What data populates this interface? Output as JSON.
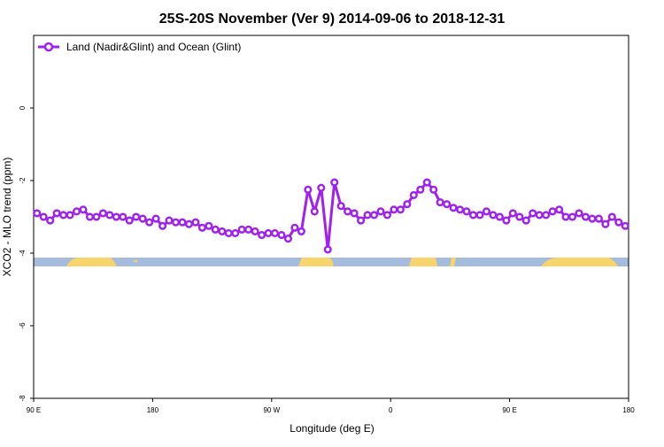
{
  "chart_data": {
    "type": "line",
    "title": "25S-20S November (Ver 9)   2014-09-06 to 2018-12-31",
    "x_label": "Longitude (deg E)",
    "y_label": "XCO2 - MLO trend (ppm)",
    "x": [
      92.5,
      97.5,
      102.5,
      107.5,
      112.5,
      117.5,
      122.5,
      127.5,
      132.5,
      137.5,
      142.5,
      147.5,
      152.5,
      157.5,
      162.5,
      167.5,
      172.5,
      177.5,
      182.5,
      187.5,
      192.5,
      197.5,
      202.5,
      207.5,
      212.5,
      217.5,
      222.5,
      227.5,
      232.5,
      237.5,
      242.5,
      247.5,
      252.5,
      257.5,
      262.5,
      267.5,
      272.5,
      277.5,
      282.5,
      287.5,
      292.5,
      297.5,
      302.5,
      307.5,
      312.5,
      317.5,
      322.5,
      327.5,
      332.5,
      337.5,
      342.5,
      347.5,
      352.5,
      357.5,
      362.5,
      367.5,
      372.5,
      377.5,
      382.5,
      387.5,
      392.5,
      397.5,
      402.5,
      407.5,
      412.5,
      417.5,
      422.5,
      427.5,
      432.5,
      437.5,
      442.5,
      447.5,
      452.5,
      457.5,
      462.5,
      467.5,
      472.5,
      477.5,
      482.5,
      487.5,
      492.5,
      497.5,
      502.5,
      507.5,
      512.5,
      517.5,
      522.5,
      527.5,
      532.5,
      537.5
    ],
    "series": [
      {
        "name": "Land (Nadir&Glint) and Ocean (Glint)",
        "color": "#a020f0",
        "values": [
          -2.9,
          -3.0,
          -3.1,
          -2.9,
          -2.95,
          -2.95,
          -2.85,
          -2.8,
          -3.0,
          -3.0,
          -2.9,
          -2.95,
          -3.0,
          -3.0,
          -3.1,
          -3.0,
          -3.05,
          -3.15,
          -3.05,
          -3.25,
          -3.1,
          -3.15,
          -3.15,
          -3.2,
          -3.15,
          -3.3,
          -3.25,
          -3.35,
          -3.4,
          -3.45,
          -3.45,
          -3.35,
          -3.35,
          -3.4,
          -3.5,
          -3.45,
          -3.45,
          -3.5,
          -3.6,
          -3.3,
          -3.4,
          -2.25,
          -2.85,
          -2.2,
          -3.9,
          -2.05,
          -2.7,
          -2.85,
          -2.9,
          -3.1,
          -2.95,
          -2.95,
          -2.85,
          -2.95,
          -2.8,
          -2.8,
          -2.65,
          -2.4,
          -2.25,
          -2.05,
          -2.25,
          -2.6,
          -2.65,
          -2.75,
          -2.8,
          -2.85,
          -2.95,
          -2.95,
          -2.85,
          -2.95,
          -3.0,
          -3.1,
          -2.9,
          -3.0,
          -3.1,
          -2.9,
          -2.95,
          -2.95,
          -2.85,
          -2.8,
          -3.0,
          -3.0,
          -2.9,
          -3.0,
          -3.05,
          -3.05,
          -3.2,
          -3.0,
          -3.15,
          -3.25
        ]
      }
    ],
    "xlim": [
      90,
      540
    ],
    "xticks": [
      {
        "value": 90,
        "label": "90 E"
      },
      180,
      {
        "value": 270,
        "label": "90 W"
      },
      {
        "value": 360,
        "label": "0"
      },
      {
        "value": 450,
        "label": "90 E"
      },
      {
        "value": 540,
        "label": "180"
      }
    ],
    "ylim": [
      -8,
      2
    ],
    "yticks": [
      -8,
      -6,
      -4,
      -2,
      0
    ],
    "legend": "top-left"
  }
}
